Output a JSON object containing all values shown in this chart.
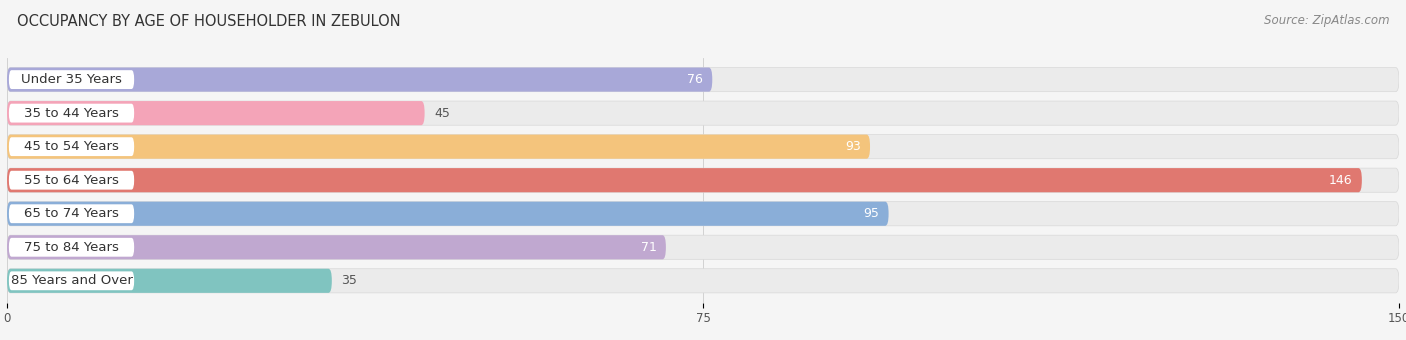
{
  "title": "OCCUPANCY BY AGE OF HOUSEHOLDER IN ZEBULON",
  "source": "Source: ZipAtlas.com",
  "categories": [
    "Under 35 Years",
    "35 to 44 Years",
    "45 to 54 Years",
    "55 to 64 Years",
    "65 to 74 Years",
    "75 to 84 Years",
    "85 Years and Over"
  ],
  "values": [
    76,
    45,
    93,
    146,
    95,
    71,
    35
  ],
  "bar_colors": [
    "#a8a8d8",
    "#f4a4b8",
    "#f4c47c",
    "#e07870",
    "#8aaed8",
    "#c0a8d0",
    "#80c4c0"
  ],
  "bar_bg_color": "#ebebeb",
  "bar_border_color": "#d8d8d8",
  "xlim": [
    0,
    150
  ],
  "xticks": [
    0,
    75,
    150
  ],
  "title_fontsize": 10.5,
  "source_fontsize": 8.5,
  "label_fontsize": 9.5,
  "value_fontsize": 9,
  "background_color": "#f5f5f5",
  "bar_height": 0.72,
  "label_pill_color": "#ffffff",
  "value_inside_color": "#ffffff",
  "value_outside_color": "#555555",
  "inside_threshold": 60
}
